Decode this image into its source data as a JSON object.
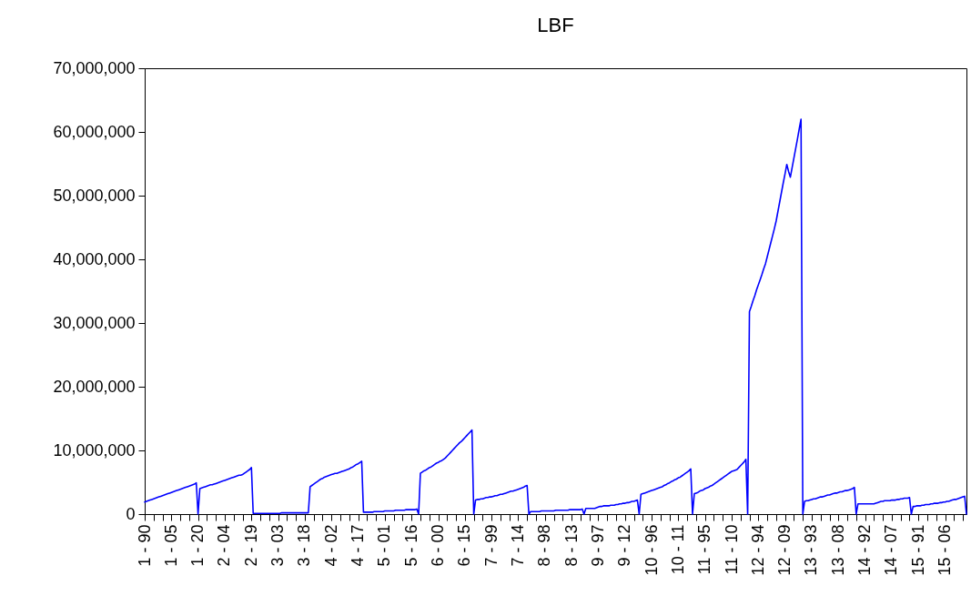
{
  "chart_data": {
    "type": "line",
    "title": "LBF",
    "categories": [
      "1 - 90",
      null,
      null,
      null,
      null,
      null,
      null,
      null,
      null,
      null,
      null,
      null,
      null,
      null,
      null,
      "1 - 05",
      null,
      null,
      null,
      null,
      null,
      null,
      null,
      null,
      null,
      null,
      null,
      null,
      null,
      null,
      "1 - 20",
      null,
      null,
      null,
      null,
      null,
      null,
      null,
      null,
      null,
      null,
      null,
      null,
      null,
      null,
      "2 - 04",
      null,
      null,
      null,
      null,
      null,
      null,
      null,
      null,
      null,
      null,
      null,
      null,
      null,
      null,
      "2 - 19",
      null,
      null,
      null,
      null,
      null,
      null,
      null,
      null,
      null,
      null,
      null,
      null,
      null,
      null,
      "3 - 03",
      null,
      null,
      null,
      null,
      null,
      null,
      null,
      null,
      null,
      null,
      null,
      null,
      null,
      null,
      "3 - 18",
      null,
      null,
      null,
      null,
      null,
      null,
      null,
      null,
      null,
      null,
      null,
      null,
      null,
      null,
      "4 - 02",
      null,
      null,
      null,
      null,
      null,
      null,
      null,
      null,
      null,
      null,
      null,
      null,
      null,
      null,
      "4 - 17",
      null,
      null,
      null,
      null,
      null,
      null,
      null,
      null,
      null,
      null,
      null,
      null,
      null,
      null,
      "5 - 01",
      null,
      null,
      null,
      null,
      null,
      null,
      null,
      null,
      null,
      null,
      null,
      null,
      null,
      null,
      "5 - 16",
      null,
      null,
      null,
      null,
      null,
      null,
      null,
      null,
      null,
      null,
      null,
      null,
      null,
      null,
      "6 - 00",
      null,
      null,
      null,
      null,
      null,
      null,
      null,
      null,
      null,
      null,
      null,
      null,
      null,
      null,
      "6 - 15",
      null,
      null,
      null,
      null,
      null,
      null,
      null,
      null,
      null,
      null,
      null,
      null,
      null,
      null,
      "7 - 99",
      null,
      null,
      null,
      null,
      null,
      null,
      null,
      null,
      null,
      null,
      null,
      null,
      null,
      null,
      "7 - 14",
      null,
      null,
      null,
      null,
      null,
      null,
      null,
      null,
      null,
      null,
      null,
      null,
      null,
      null,
      "8 - 98",
      null,
      null,
      null,
      null,
      null,
      null,
      null,
      null,
      null,
      null,
      null,
      null,
      null,
      null,
      "8 - 13",
      null,
      null,
      null,
      null,
      null,
      null,
      null,
      null,
      null,
      null,
      null,
      null,
      null,
      null,
      "9 - 97",
      null,
      null,
      null,
      null,
      null,
      null,
      null,
      null,
      null,
      null,
      null,
      null,
      null,
      null,
      "9 - 12",
      null,
      null,
      null,
      null,
      null,
      null,
      null,
      null,
      null,
      null,
      null,
      null,
      null,
      null,
      "10 - 96",
      null,
      null,
      null,
      null,
      null,
      null,
      null,
      null,
      null,
      null,
      null,
      null,
      null,
      null,
      "10 - 11",
      null,
      null,
      null,
      null,
      null,
      null,
      null,
      null,
      null,
      null,
      null,
      null,
      null,
      null,
      "11 - 95",
      null,
      null,
      null,
      null,
      null,
      null,
      null,
      null,
      null,
      null,
      null,
      null,
      null,
      null,
      "11 - 10",
      null,
      null,
      null,
      null,
      null,
      null,
      null,
      null,
      null,
      null,
      null,
      null,
      null,
      null,
      "12 - 94",
      null,
      null,
      null,
      null,
      null,
      null,
      null,
      null,
      null,
      null,
      null,
      null,
      null,
      null,
      "12 - 09",
      null,
      null,
      null,
      null,
      null,
      null,
      null,
      null,
      null,
      null,
      null,
      null,
      null,
      null,
      "13 - 93",
      null,
      null,
      null,
      null,
      null,
      null,
      null,
      null,
      null,
      null,
      null,
      null,
      null,
      null,
      "13 - 08",
      null,
      null,
      null,
      null,
      null,
      null,
      null,
      null,
      null,
      null,
      null,
      null,
      null,
      null,
      "14 - 92",
      null,
      null,
      null,
      null,
      null,
      null,
      null,
      null,
      null,
      null,
      null,
      null,
      null,
      null,
      "14 - 07",
      null,
      null,
      null,
      null,
      null,
      null,
      null,
      null,
      null,
      null,
      null,
      null,
      null,
      null,
      "15 - 91",
      null,
      null,
      null,
      null,
      null,
      null,
      null,
      null,
      null,
      null,
      null,
      null,
      null,
      null,
      "15 - 06",
      null,
      null,
      null,
      null,
      null,
      null,
      null,
      null,
      null,
      null,
      null,
      null
    ],
    "series": [
      {
        "color": "#0000ff",
        "values": [
          1900000,
          2000000,
          2100000,
          2200000,
          2300000,
          2400000,
          2500000,
          2600000,
          2700000,
          2800000,
          2900000,
          3000000,
          3100000,
          3200000,
          3300000,
          3400000,
          3500000,
          3600000,
          3700000,
          3800000,
          3900000,
          4000000,
          4100000,
          4200000,
          4300000,
          4400000,
          4500000,
          4600000,
          4700000,
          4900000,
          0,
          4000000,
          4100000,
          4200000,
          4300000,
          4400000,
          4500000,
          4600000,
          4600000,
          4700000,
          4800000,
          4900000,
          5000000,
          5100000,
          5200000,
          5300000,
          5400000,
          5500000,
          5600000,
          5700000,
          5800000,
          5900000,
          6000000,
          6100000,
          6100000,
          6200000,
          6400000,
          6600000,
          6800000,
          7000000,
          7300000,
          100000,
          100000,
          100000,
          100000,
          100000,
          100000,
          100000,
          100000,
          100000,
          100000,
          100000,
          100000,
          100000,
          100000,
          100000,
          100000,
          200000,
          200000,
          200000,
          200000,
          200000,
          200000,
          200000,
          200000,
          200000,
          200000,
          200000,
          200000,
          200000,
          200000,
          200000,
          200000,
          4300000,
          4500000,
          4700000,
          4900000,
          5100000,
          5300000,
          5500000,
          5600000,
          5800000,
          5900000,
          6000000,
          6100000,
          6200000,
          6300000,
          6400000,
          6400000,
          6500000,
          6600000,
          6700000,
          6800000,
          6900000,
          7000000,
          7100000,
          7300000,
          7400000,
          7600000,
          7800000,
          7900000,
          8100000,
          8300000,
          300000,
          300000,
          300000,
          300000,
          300000,
          300000,
          400000,
          400000,
          400000,
          400000,
          400000,
          400000,
          500000,
          500000,
          500000,
          500000,
          500000,
          500000,
          600000,
          600000,
          600000,
          600000,
          600000,
          600000,
          700000,
          700000,
          700000,
          700000,
          700000,
          700000,
          800000,
          0,
          6400000,
          6600000,
          6800000,
          6900000,
          7100000,
          7300000,
          7400000,
          7600000,
          7800000,
          8000000,
          8100000,
          8300000,
          8400000,
          8600000,
          8800000,
          9100000,
          9400000,
          9700000,
          10000000,
          10300000,
          10600000,
          10900000,
          11200000,
          11400000,
          11700000,
          12000000,
          12300000,
          12600000,
          12900000,
          13200000,
          0,
          2200000,
          2300000,
          2300000,
          2400000,
          2400000,
          2500000,
          2600000,
          2600000,
          2700000,
          2700000,
          2800000,
          2900000,
          2900000,
          3000000,
          3100000,
          3100000,
          3200000,
          3300000,
          3400000,
          3500000,
          3600000,
          3600000,
          3700000,
          3800000,
          3900000,
          4000000,
          4100000,
          4200000,
          4400000,
          4500000,
          0,
          400000,
          400000,
          400000,
          400000,
          400000,
          400000,
          500000,
          500000,
          500000,
          500000,
          500000,
          500000,
          500000,
          500000,
          600000,
          600000,
          600000,
          600000,
          600000,
          600000,
          600000,
          600000,
          700000,
          700000,
          700000,
          700000,
          700000,
          700000,
          700000,
          800000,
          0,
          900000,
          900000,
          900000,
          900000,
          900000,
          900000,
          1000000,
          1100000,
          1200000,
          1200000,
          1300000,
          1300000,
          1300000,
          1300000,
          1400000,
          1400000,
          1400000,
          1500000,
          1500000,
          1600000,
          1600000,
          1700000,
          1700000,
          1800000,
          1800000,
          1900000,
          2000000,
          2000000,
          2100000,
          2200000,
          0,
          3100000,
          3200000,
          3300000,
          3400000,
          3500000,
          3600000,
          3700000,
          3800000,
          3900000,
          4000000,
          4100000,
          4200000,
          4300000,
          4500000,
          4600000,
          4800000,
          4900000,
          5100000,
          5200000,
          5400000,
          5500000,
          5700000,
          5800000,
          6000000,
          6200000,
          6400000,
          6600000,
          6800000,
          7100000,
          0,
          3200000,
          3300000,
          3400000,
          3600000,
          3700000,
          3800000,
          4000000,
          4100000,
          4200000,
          4400000,
          4500000,
          4700000,
          4900000,
          5100000,
          5300000,
          5500000,
          5700000,
          5900000,
          6100000,
          6300000,
          6500000,
          6700000,
          6800000,
          6900000,
          7000000,
          7300000,
          7600000,
          7900000,
          8200000,
          8600000,
          0,
          31800000,
          32600000,
          33500000,
          34300000,
          35200000,
          36000000,
          36800000,
          37600000,
          38500000,
          39300000,
          40400000,
          41500000,
          42600000,
          43700000,
          44800000,
          46000000,
          47500000,
          49000000,
          50500000,
          52000000,
          53400000,
          54900000,
          53800000,
          52900000,
          54400000,
          55900000,
          57400000,
          58900000,
          60500000,
          62000000,
          0,
          2000000,
          2100000,
          2100000,
          2200000,
          2300000,
          2400000,
          2400000,
          2500000,
          2600000,
          2700000,
          2700000,
          2800000,
          2900000,
          3000000,
          3000000,
          3100000,
          3200000,
          3300000,
          3300000,
          3400000,
          3500000,
          3500000,
          3600000,
          3700000,
          3700000,
          3800000,
          3900000,
          4000000,
          4200000,
          0,
          1600000,
          1600000,
          1600000,
          1600000,
          1600000,
          1600000,
          1600000,
          1600000,
          1600000,
          1600000,
          1700000,
          1800000,
          1900000,
          2000000,
          2000000,
          2100000,
          2100000,
          2100000,
          2100000,
          2200000,
          2200000,
          2200000,
          2300000,
          2300000,
          2400000,
          2400000,
          2500000,
          2500000,
          2500000,
          2600000,
          0,
          1200000,
          1200000,
          1300000,
          1300000,
          1300000,
          1400000,
          1400000,
          1500000,
          1500000,
          1500000,
          1600000,
          1600000,
          1700000,
          1700000,
          1700000,
          1800000,
          1800000,
          1900000,
          1900000,
          2000000,
          2000000,
          2100000,
          2200000,
          2300000,
          2300000,
          2400000,
          2500000,
          2600000,
          2700000,
          2800000,
          0
        ]
      }
    ],
    "ylim": [
      0,
      70000000
    ],
    "yticks": [
      {
        "value": 0,
        "label": "0"
      },
      {
        "value": 10000000,
        "label": "10,000,000"
      },
      {
        "value": 20000000,
        "label": "20,000,000"
      },
      {
        "value": 30000000,
        "label": "30,000,000"
      },
      {
        "value": 40000000,
        "label": "40,000,000"
      },
      {
        "value": 50000000,
        "label": "50,000,000"
      },
      {
        "value": 60000000,
        "label": "60,000,000"
      },
      {
        "value": 70000000,
        "label": "70,000,000"
      }
    ],
    "grid": false,
    "marker": "none",
    "line_style": "solid"
  }
}
